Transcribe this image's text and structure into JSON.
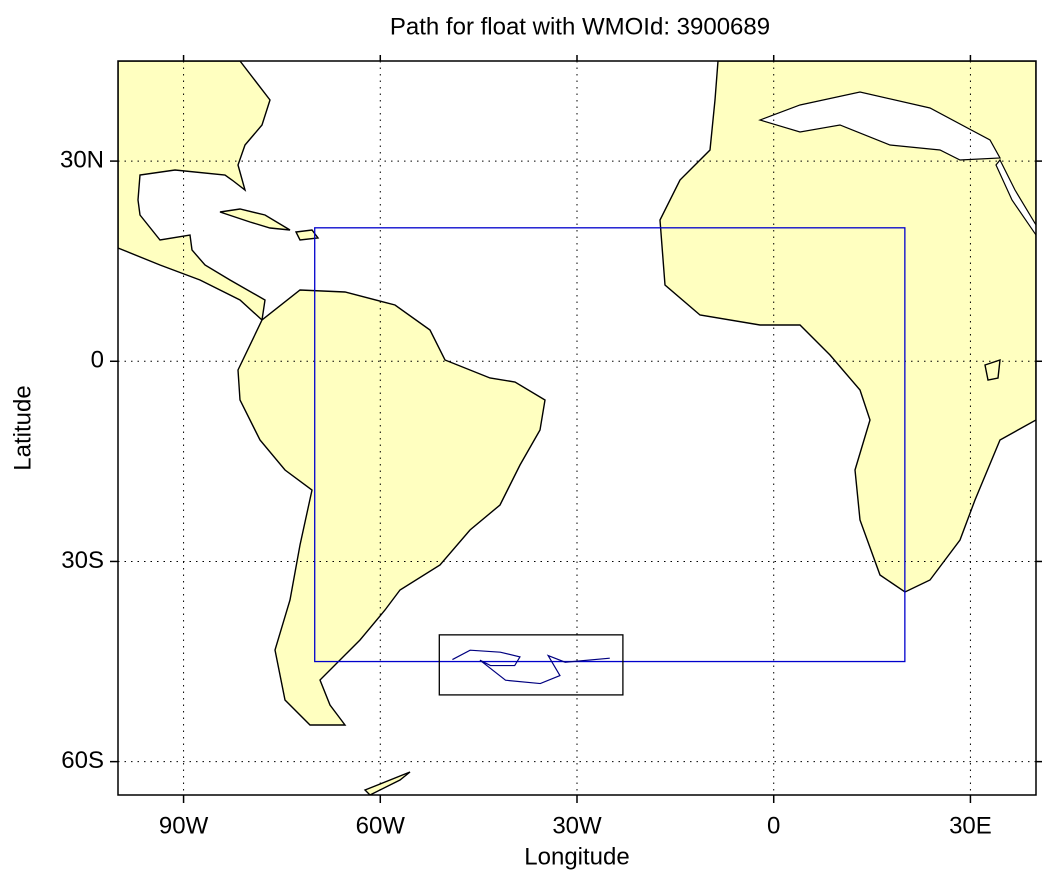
{
  "chart_data": {
    "type": "map",
    "title": "Path for float with WMOId: 3900689",
    "x_label": "Longitude",
    "y_label": "Latitude",
    "xlim": [
      -100,
      40
    ],
    "ylim": [
      -65,
      45
    ],
    "xticks": [
      {
        "value": -90,
        "label": "90W"
      },
      {
        "value": -60,
        "label": "60W"
      },
      {
        "value": -30,
        "label": "30W"
      },
      0,
      {
        "value": 30,
        "label": "30E"
      }
    ],
    "yticks": [
      {
        "value": 30,
        "label": "30N"
      },
      0,
      {
        "value": -30,
        "label": "30S"
      },
      {
        "value": -60,
        "label": "60S"
      }
    ],
    "grid": true,
    "region_box": {
      "lon": [
        -70,
        20
      ],
      "lat": [
        -45,
        20
      ],
      "color": "#0000cc"
    },
    "path_box": {
      "lon": [
        -51,
        -23
      ],
      "lat": [
        -50,
        -41
      ],
      "color": "#000000"
    },
    "float_path": {
      "color": "#000080",
      "lon": [
        -49,
        -46.3,
        -41.7,
        -38.7,
        -39.5,
        -43.2,
        -44.8,
        -40.9,
        -35.6,
        -32.6,
        -34.4,
        -31.8,
        -25
      ],
      "lat": [
        -44.7,
        -43.3,
        -43.6,
        -44.3,
        -45.6,
        -45.6,
        -44.8,
        -47.8,
        -48.3,
        -47.1,
        -44.1,
        -45.1,
        -44.5
      ]
    }
  }
}
